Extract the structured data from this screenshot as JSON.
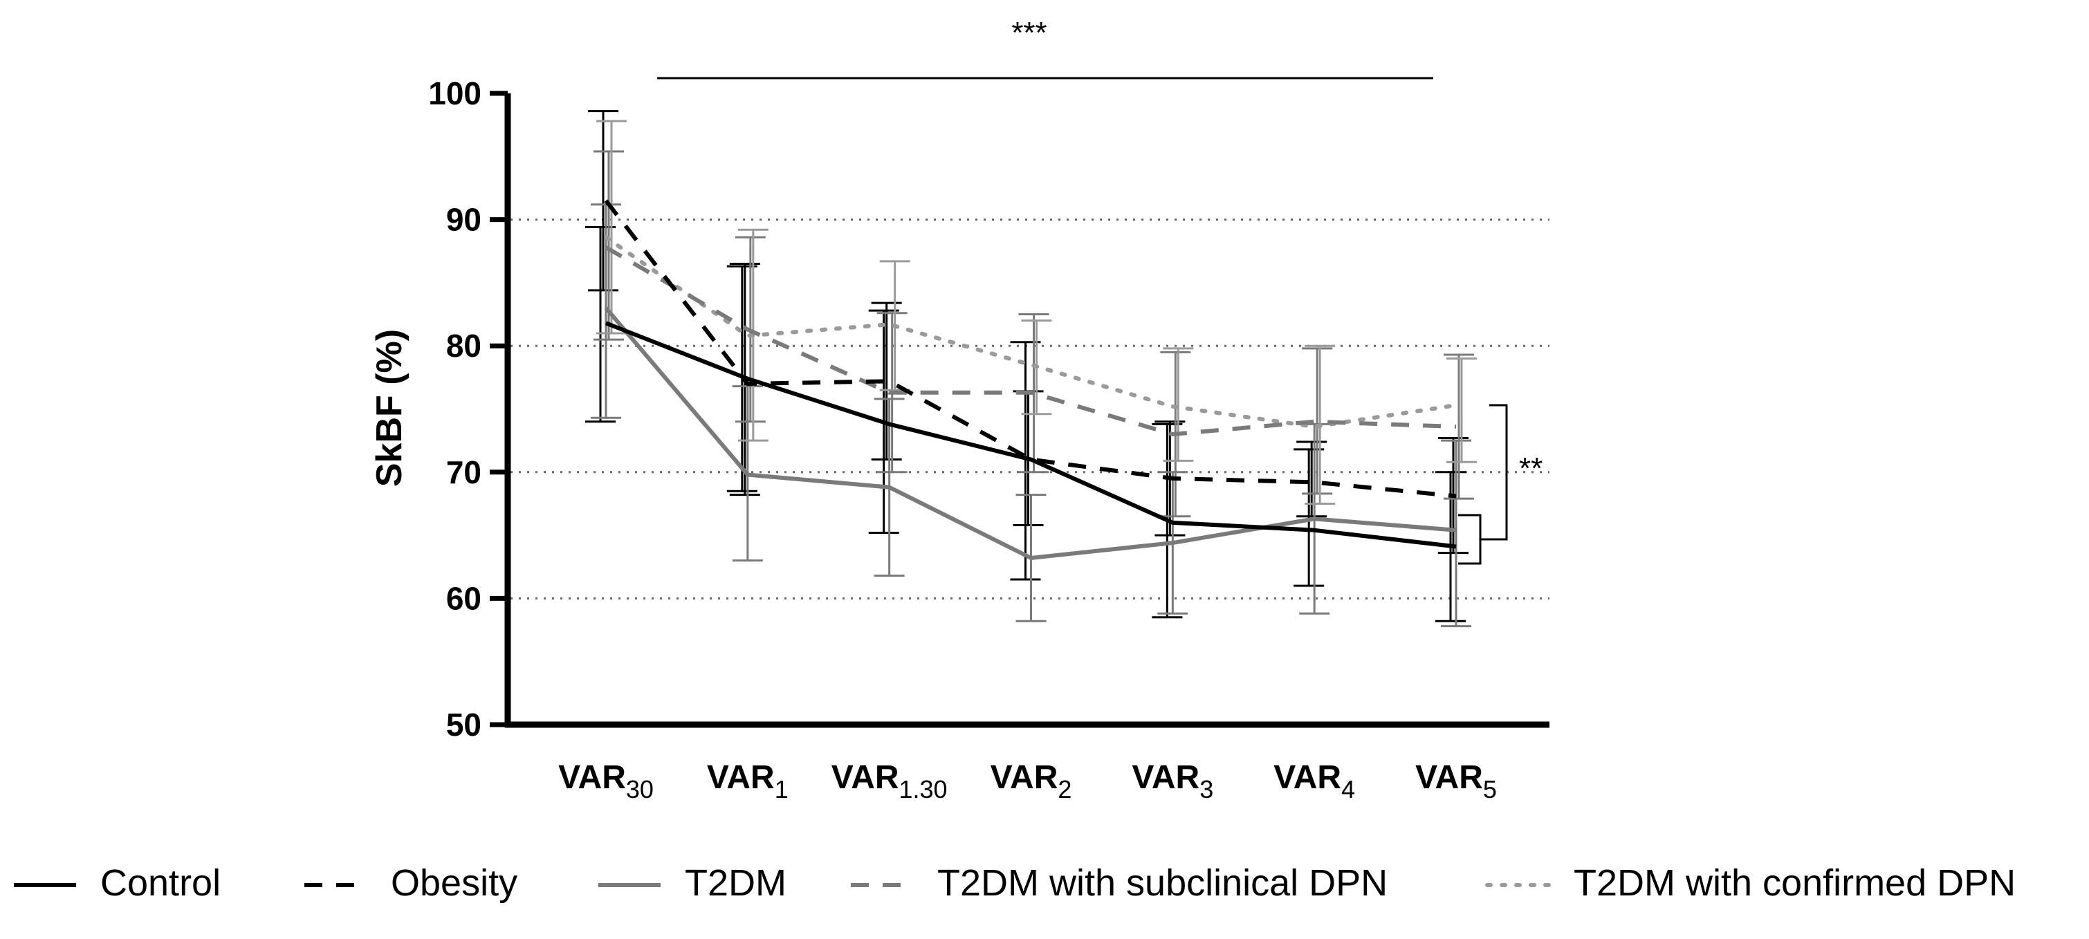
{
  "chart_data": {
    "type": "line",
    "title": "",
    "xlabel": "",
    "ylabel": "SkBF (%)",
    "ylim": [
      50,
      100
    ],
    "yticks": [
      50,
      60,
      70,
      80,
      90,
      100
    ],
    "yticks_text": [
      "50",
      "60",
      "70",
      "80",
      "90",
      "100"
    ],
    "grid": "dotted horizontal at 60, 70, 80, 90",
    "categories": [
      {
        "main": "VAR",
        "sub": "30"
      },
      {
        "main": "VAR",
        "sub": "1"
      },
      {
        "main": "VAR",
        "sub": "1.30"
      },
      {
        "main": "VAR",
        "sub": "2"
      },
      {
        "main": "VAR",
        "sub": "3"
      },
      {
        "main": "VAR",
        "sub": "4"
      },
      {
        "main": "VAR",
        "sub": "5"
      }
    ],
    "series": [
      {
        "name": "Control",
        "color": "#000000",
        "dash": "solid",
        "values": [
          81.8,
          77.4,
          73.8,
          71.0,
          66.0,
          65.4,
          64.1
        ],
        "err_low": [
          74.0,
          68.5,
          65.2,
          61.5,
          58.5,
          61.0,
          58.2
        ],
        "err_high": [
          89.4,
          86.3,
          82.8,
          80.3,
          73.8,
          71.8,
          70.0
        ]
      },
      {
        "name": "Obesity",
        "color": "#000000",
        "dash": "dashed",
        "values": [
          91.5,
          77.0,
          77.2,
          71.0,
          69.5,
          69.2,
          68.1
        ],
        "err_low": [
          84.4,
          68.2,
          71.0,
          65.8,
          65.0,
          66.5,
          63.6
        ],
        "err_high": [
          98.6,
          86.5,
          83.4,
          76.4,
          74.0,
          72.4,
          72.7
        ]
      },
      {
        "name": "T2DM",
        "color": "#7a7a7a",
        "dash": "solid",
        "values": [
          83.0,
          69.8,
          68.8,
          63.2,
          64.4,
          66.3,
          65.4
        ],
        "err_low": [
          74.3,
          63.0,
          61.8,
          58.2,
          58.8,
          58.8,
          57.8
        ],
        "err_high": [
          91.2,
          76.8,
          75.8,
          68.2,
          70.0,
          73.8,
          72.5
        ]
      },
      {
        "name": "T2DM with subclinical DPN",
        "color": "#7a7a7a",
        "dash": "dashed",
        "values": [
          87.8,
          81.3,
          76.3,
          76.3,
          73.0,
          74.0,
          73.6
        ],
        "err_low": [
          80.5,
          74.0,
          70.0,
          70.0,
          66.5,
          68.3,
          67.9
        ],
        "err_high": [
          95.4,
          88.6,
          82.6,
          82.5,
          79.5,
          79.8,
          79.3
        ]
      },
      {
        "name": "T2DM with confirmed DPN",
        "color": "#9a9a9a",
        "dash": "dotted",
        "values": [
          88.6,
          80.8,
          81.7,
          78.5,
          75.2,
          73.6,
          75.3
        ],
        "err_low": [
          81.0,
          72.5,
          76.5,
          74.6,
          70.9,
          67.5,
          70.8
        ],
        "err_high": [
          97.8,
          89.2,
          86.7,
          82.0,
          79.8,
          80.0,
          79.0
        ]
      }
    ],
    "annotations": [
      {
        "text": "***",
        "type": "bracket-top",
        "from_category": 0,
        "to_category": 6
      },
      {
        "text": "**",
        "type": "bracket-right",
        "between": [
          "T2DM with subclinical DPN",
          "Control/T2DM"
        ]
      }
    ],
    "legend": "bottom"
  }
}
